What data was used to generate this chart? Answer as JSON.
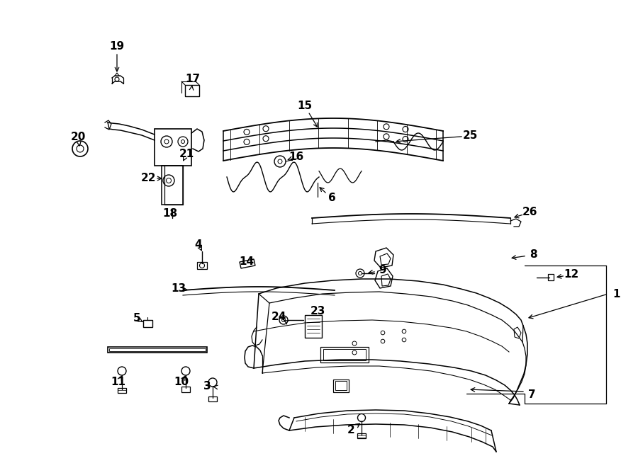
{
  "bg_color": "#ffffff",
  "lc": "#000000",
  "lw": 1.1,
  "fs": 11,
  "fig_w": 9.0,
  "fig_h": 6.61,
  "dpi": 100
}
